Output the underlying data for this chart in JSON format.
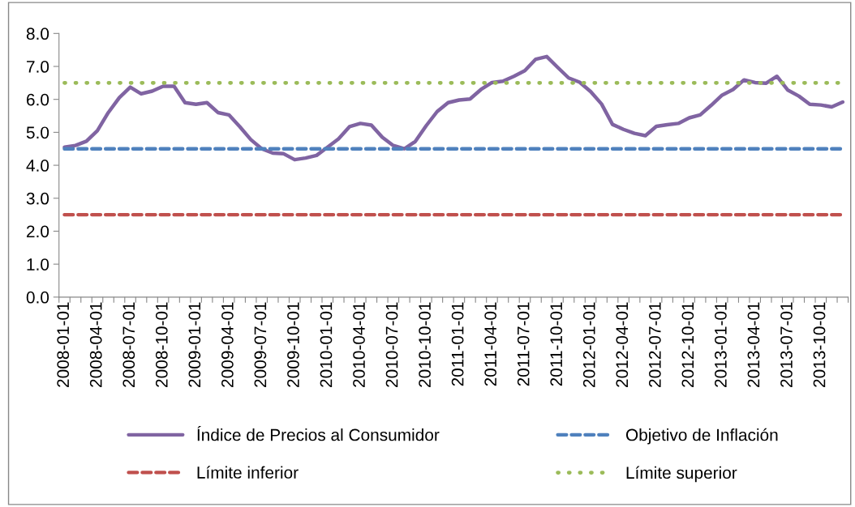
{
  "chart_data": {
    "type": "line",
    "categories": [
      "2008-01-01",
      null,
      null,
      "2008-04-01",
      null,
      null,
      "2008-07-01",
      null,
      null,
      "2008-10-01",
      null,
      null,
      "2009-01-01",
      null,
      null,
      "2009-04-01",
      null,
      null,
      "2009-07-01",
      null,
      null,
      "2009-10-01",
      null,
      null,
      "2010-01-01",
      null,
      null,
      "2010-04-01",
      null,
      null,
      "2010-07-01",
      null,
      null,
      "2010-10-01",
      null,
      null,
      "2011-01-01",
      null,
      null,
      "2011-04-01",
      null,
      null,
      "2011-07-01",
      null,
      null,
      "2011-10-01",
      null,
      null,
      "2012-01-01",
      null,
      null,
      "2012-04-01",
      null,
      null,
      "2012-07-01",
      null,
      null,
      "2012-10-01",
      null,
      null,
      "2013-01-01",
      null,
      null,
      "2013-04-01",
      null,
      null,
      "2013-07-01",
      null,
      null,
      "2013-10-01",
      null,
      null
    ],
    "series": [
      {
        "name": "Índice de Precios al Consumidor",
        "color": "#8064a2",
        "line_style": "solid",
        "values": [
          4.55,
          4.6,
          4.73,
          5.05,
          5.6,
          6.05,
          6.37,
          6.17,
          6.25,
          6.4,
          6.4,
          5.9,
          5.85,
          5.9,
          5.6,
          5.53,
          5.17,
          4.78,
          4.5,
          4.37,
          4.35,
          4.17,
          4.22,
          4.3,
          4.55,
          4.8,
          5.17,
          5.27,
          5.22,
          4.85,
          4.6,
          4.5,
          4.72,
          5.2,
          5.63,
          5.9,
          5.98,
          6.01,
          6.3,
          6.51,
          6.55,
          6.7,
          6.87,
          7.22,
          7.3,
          6.97,
          6.65,
          6.52,
          6.24,
          5.86,
          5.24,
          5.09,
          4.97,
          4.9,
          5.18,
          5.23,
          5.27,
          5.44,
          5.53,
          5.82,
          6.13,
          6.3,
          6.59,
          6.51,
          6.49,
          6.7,
          6.28,
          6.1,
          5.85,
          5.83,
          5.77,
          5.92
        ]
      },
      {
        "name": "Objetivo de Inflación",
        "color": "#4f81bd",
        "line_style": "dashed",
        "values": [
          4.5,
          4.5,
          4.5,
          4.5,
          4.5,
          4.5,
          4.5,
          4.5,
          4.5,
          4.5,
          4.5,
          4.5,
          4.5,
          4.5,
          4.5,
          4.5,
          4.5,
          4.5,
          4.5,
          4.5,
          4.5,
          4.5,
          4.5,
          4.5,
          4.5,
          4.5,
          4.5,
          4.5,
          4.5,
          4.5,
          4.5,
          4.5,
          4.5,
          4.5,
          4.5,
          4.5,
          4.5,
          4.5,
          4.5,
          4.5,
          4.5,
          4.5,
          4.5,
          4.5,
          4.5,
          4.5,
          4.5,
          4.5,
          4.5,
          4.5,
          4.5,
          4.5,
          4.5,
          4.5,
          4.5,
          4.5,
          4.5,
          4.5,
          4.5,
          4.5,
          4.5,
          4.5,
          4.5,
          4.5,
          4.5,
          4.5,
          4.5,
          4.5,
          4.5,
          4.5,
          4.5,
          4.5
        ]
      },
      {
        "name": "Límite inferior",
        "color": "#c0504d",
        "line_style": "dashed",
        "values": [
          2.5,
          2.5,
          2.5,
          2.5,
          2.5,
          2.5,
          2.5,
          2.5,
          2.5,
          2.5,
          2.5,
          2.5,
          2.5,
          2.5,
          2.5,
          2.5,
          2.5,
          2.5,
          2.5,
          2.5,
          2.5,
          2.5,
          2.5,
          2.5,
          2.5,
          2.5,
          2.5,
          2.5,
          2.5,
          2.5,
          2.5,
          2.5,
          2.5,
          2.5,
          2.5,
          2.5,
          2.5,
          2.5,
          2.5,
          2.5,
          2.5,
          2.5,
          2.5,
          2.5,
          2.5,
          2.5,
          2.5,
          2.5,
          2.5,
          2.5,
          2.5,
          2.5,
          2.5,
          2.5,
          2.5,
          2.5,
          2.5,
          2.5,
          2.5,
          2.5,
          2.5,
          2.5,
          2.5,
          2.5,
          2.5,
          2.5,
          2.5,
          2.5,
          2.5,
          2.5,
          2.5,
          2.5
        ]
      },
      {
        "name": "Límite superior",
        "color": "#9bbb59",
        "line_style": "dotted",
        "values": [
          6.5,
          6.5,
          6.5,
          6.5,
          6.5,
          6.5,
          6.5,
          6.5,
          6.5,
          6.5,
          6.5,
          6.5,
          6.5,
          6.5,
          6.5,
          6.5,
          6.5,
          6.5,
          6.5,
          6.5,
          6.5,
          6.5,
          6.5,
          6.5,
          6.5,
          6.5,
          6.5,
          6.5,
          6.5,
          6.5,
          6.5,
          6.5,
          6.5,
          6.5,
          6.5,
          6.5,
          6.5,
          6.5,
          6.5,
          6.5,
          6.5,
          6.5,
          6.5,
          6.5,
          6.5,
          6.5,
          6.5,
          6.5,
          6.5,
          6.5,
          6.5,
          6.5,
          6.5,
          6.5,
          6.5,
          6.5,
          6.5,
          6.5,
          6.5,
          6.5,
          6.5,
          6.5,
          6.5,
          6.5,
          6.5,
          6.5,
          6.5,
          6.5,
          6.5,
          6.5,
          6.5,
          6.5
        ]
      }
    ],
    "ylim": [
      0,
      8
    ],
    "yticks": [
      {
        "value": 0,
        "label": "0.0"
      },
      {
        "value": 1,
        "label": "1.0"
      },
      {
        "value": 2,
        "label": "2.0"
      },
      {
        "value": 3,
        "label": "3.0"
      },
      {
        "value": 4,
        "label": "4.0"
      },
      {
        "value": 5,
        "label": "5.0"
      },
      {
        "value": 6,
        "label": "6.0"
      },
      {
        "value": 7,
        "label": "7.0"
      },
      {
        "value": 8,
        "label": "8.0"
      }
    ],
    "grid": false,
    "legend": "bottom",
    "marker": "none"
  }
}
